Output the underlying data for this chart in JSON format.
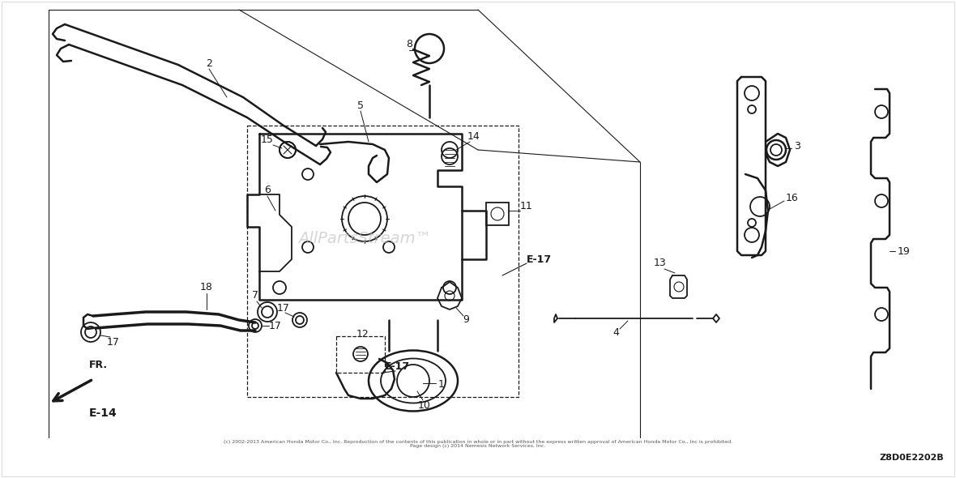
{
  "bg_color": "#ffffff",
  "line_color": "#1a1a1a",
  "copyright_text": "(c) 2002-2013 American Honda Motor Co., Inc. Reproduction of the contents of this publication in whole or in part without the express written approval of American Honda Motor Co., Inc is prohibited.\nPage design (c) 2014 Nemesis Network Services, Inc.",
  "diagram_id": "Z8D0E2202B",
  "watermark": "AllPartsStream™"
}
